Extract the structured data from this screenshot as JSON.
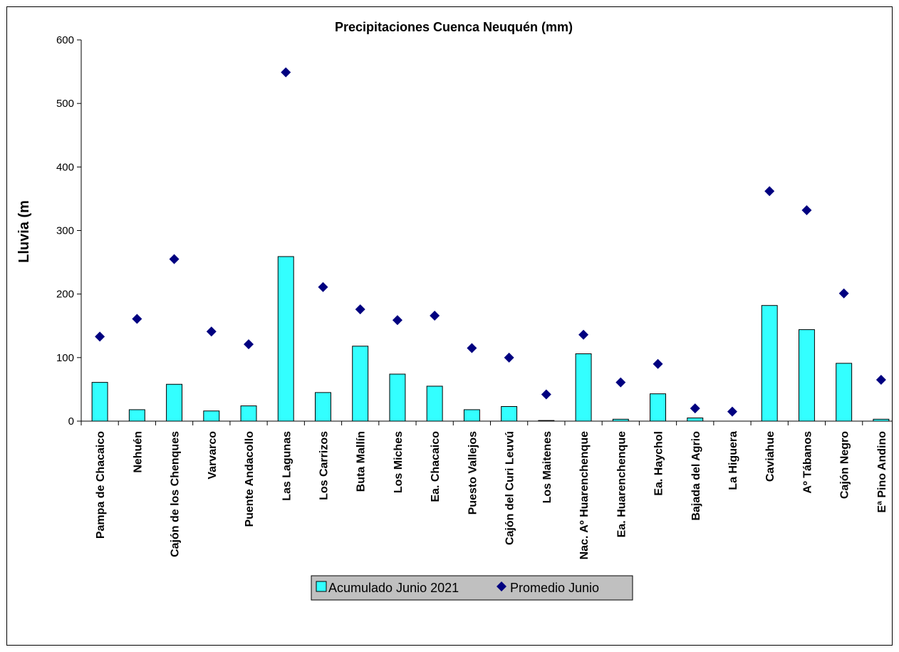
{
  "chart_data": {
    "type": "bar",
    "title": "Precipitaciones Cuenca Neuquén (mm)",
    "ylabel": "Lluvia (m",
    "xlabel": "",
    "ylim": [
      0,
      600
    ],
    "yticks": [
      0,
      100,
      200,
      300,
      400,
      500,
      600
    ],
    "grid": false,
    "legend_position": "bottom",
    "categories": [
      "Pampa de Chacaico",
      "Nehuén",
      "Cajón de los Chenques",
      "Varvarco",
      "Puente Andacollo",
      "Las Lagunas",
      "Los Carrizos",
      "Buta Mallín",
      "Los Miches",
      "Ea. Chacaico",
      "Puesto Vallejos",
      "Cajón del Curi Leuvú",
      "Los Maitenes",
      "Nac. Aº Huarenchenque",
      "Ea. Huarenchenque",
      "Ea. Haychol",
      "Bajada del Agrio",
      "La Higuera",
      "Caviahue",
      "Aº Tábanos",
      "Cajón Negro",
      "Eª Pino Andino"
    ],
    "series": [
      {
        "name": "Acumulado Junio 2021",
        "kind": "bar",
        "color": "#33FFFF",
        "values": [
          61,
          18,
          58,
          16,
          24,
          259,
          45,
          118,
          74,
          55,
          18,
          23,
          1,
          106,
          3,
          43,
          5,
          0,
          182,
          144,
          91,
          3
        ]
      },
      {
        "name": "Promedio Junio",
        "kind": "scatter",
        "color": "#000080",
        "values": [
          133,
          161,
          255,
          141,
          121,
          549,
          211,
          176,
          159,
          166,
          115,
          100,
          42,
          136,
          61,
          90,
          20,
          15,
          362,
          332,
          201,
          65
        ]
      }
    ]
  }
}
